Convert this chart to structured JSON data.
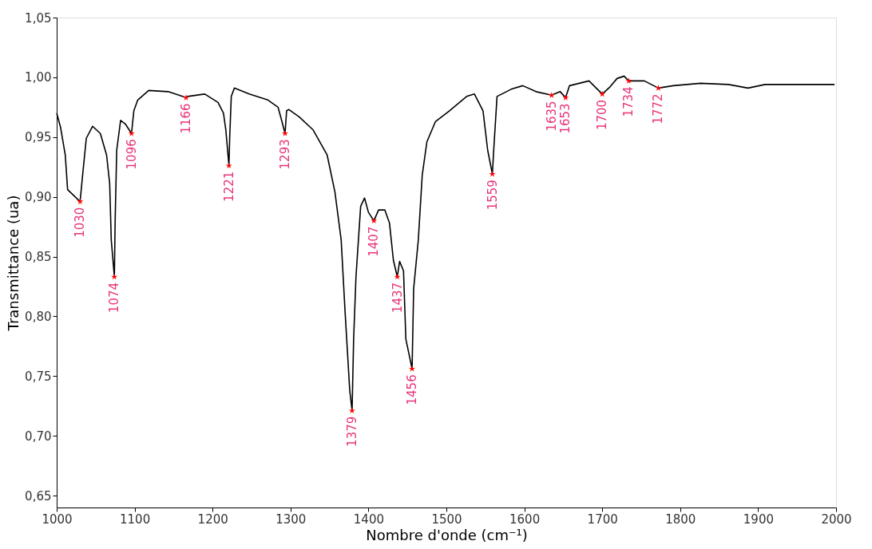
{
  "chart_data": {
    "type": "line",
    "xlabel": "Nombre d'onde (cm⁻¹)",
    "ylabel": "Transmittance (ua)",
    "xlim": [
      1000,
      2000
    ],
    "xticks": [
      1000,
      1100,
      1200,
      1300,
      1400,
      1500,
      1600,
      1700,
      1800,
      1900,
      2000
    ],
    "ylim": [
      0.64,
      1.05
    ],
    "yticks": [
      {
        "value": 0.65,
        "label": "0,65"
      },
      {
        "value": 0.7,
        "label": "0,70"
      },
      {
        "value": 0.75,
        "label": "0,75"
      },
      {
        "value": 0.8,
        "label": "0,80"
      },
      {
        "value": 0.85,
        "label": "0,85"
      },
      {
        "value": 0.9,
        "label": "0,90"
      },
      {
        "value": 0.95,
        "label": "0,95"
      },
      {
        "value": 1.0,
        "label": "1,00"
      },
      {
        "value": 1.05,
        "label": "1,05"
      }
    ],
    "grid": false,
    "series": [
      {
        "color": "#000000",
        "marker": "none",
        "line_style": "solid",
        "x": [
          1000,
          1005,
          1011,
          1014,
          1030,
          1034,
          1038,
          1046,
          1056,
          1064,
          1068,
          1070,
          1074,
          1075,
          1077,
          1082,
          1088,
          1091,
          1096,
          1099,
          1104,
          1118,
          1143,
          1166,
          1168,
          1190,
          1207,
          1214,
          1217,
          1221,
          1222,
          1224,
          1228,
          1247,
          1271,
          1284,
          1289,
          1293,
          1295,
          1298,
          1311,
          1329,
          1347,
          1357,
          1365,
          1370,
          1376,
          1379,
          1381,
          1384,
          1390,
          1395,
          1400,
          1407,
          1413,
          1421,
          1427,
          1432,
          1437,
          1440,
          1445,
          1448,
          1456,
          1458,
          1464,
          1469,
          1475,
          1486,
          1504,
          1526,
          1536,
          1547,
          1553,
          1559,
          1561,
          1565,
          1583,
          1598,
          1615,
          1635,
          1646,
          1653,
          1658,
          1683,
          1700,
          1710,
          1719,
          1728,
          1734,
          1754,
          1772,
          1791,
          1826,
          1862,
          1887,
          1909,
          1998
        ],
        "values": [
          0.97,
          0.958,
          0.935,
          0.906,
          0.896,
          0.923,
          0.949,
          0.959,
          0.953,
          0.935,
          0.911,
          0.864,
          0.833,
          0.88,
          0.939,
          0.964,
          0.961,
          0.958,
          0.953,
          0.972,
          0.981,
          0.989,
          0.988,
          0.983,
          0.984,
          0.986,
          0.979,
          0.97,
          0.956,
          0.926,
          0.95,
          0.984,
          0.991,
          0.986,
          0.981,
          0.975,
          0.963,
          0.953,
          0.972,
          0.973,
          0.967,
          0.956,
          0.935,
          0.904,
          0.864,
          0.804,
          0.738,
          0.721,
          0.781,
          0.833,
          0.892,
          0.899,
          0.887,
          0.88,
          0.889,
          0.889,
          0.878,
          0.847,
          0.833,
          0.846,
          0.838,
          0.781,
          0.756,
          0.823,
          0.864,
          0.918,
          0.946,
          0.963,
          0.972,
          0.984,
          0.986,
          0.972,
          0.939,
          0.919,
          0.942,
          0.984,
          0.99,
          0.993,
          0.988,
          0.985,
          0.988,
          0.983,
          0.993,
          0.997,
          0.986,
          0.992,
          0.999,
          1.001,
          0.997,
          0.997,
          0.991,
          0.993,
          0.995,
          0.994,
          0.991,
          0.994,
          0.994
        ]
      },
      {
        "type": "scatter",
        "color": "#ff0000",
        "marker": "star",
        "x": [
          1030,
          1074,
          1096,
          1166,
          1221,
          1293,
          1379,
          1407,
          1437,
          1456,
          1559,
          1635,
          1653,
          1700,
          1734,
          1772
        ],
        "values": [
          0.896,
          0.833,
          0.953,
          0.983,
          0.926,
          0.953,
          0.721,
          0.88,
          0.833,
          0.756,
          0.919,
          0.985,
          0.983,
          0.986,
          0.997,
          0.991
        ]
      }
    ],
    "annotations": [
      {
        "text": "1030",
        "x": 1030,
        "y": 0.896
      },
      {
        "text": "1074",
        "x": 1074,
        "y": 0.833
      },
      {
        "text": "1096",
        "x": 1096,
        "y": 0.953
      },
      {
        "text": "1166",
        "x": 1166,
        "y": 0.983
      },
      {
        "text": "1221",
        "x": 1221,
        "y": 0.926
      },
      {
        "text": "1293",
        "x": 1293,
        "y": 0.953
      },
      {
        "text": "1379",
        "x": 1379,
        "y": 0.721
      },
      {
        "text": "1407",
        "x": 1407,
        "y": 0.88
      },
      {
        "text": "1437",
        "x": 1437,
        "y": 0.833
      },
      {
        "text": "1456",
        "x": 1456,
        "y": 0.756
      },
      {
        "text": "1559",
        "x": 1559,
        "y": 0.919
      },
      {
        "text": "1635",
        "x": 1635,
        "y": 0.985
      },
      {
        "text": "1653",
        "x": 1653,
        "y": 0.983
      },
      {
        "text": "1700",
        "x": 1700,
        "y": 0.986
      },
      {
        "text": "1734",
        "x": 1734,
        "y": 0.997
      },
      {
        "text": "1772",
        "x": 1772,
        "y": 0.991
      }
    ]
  }
}
